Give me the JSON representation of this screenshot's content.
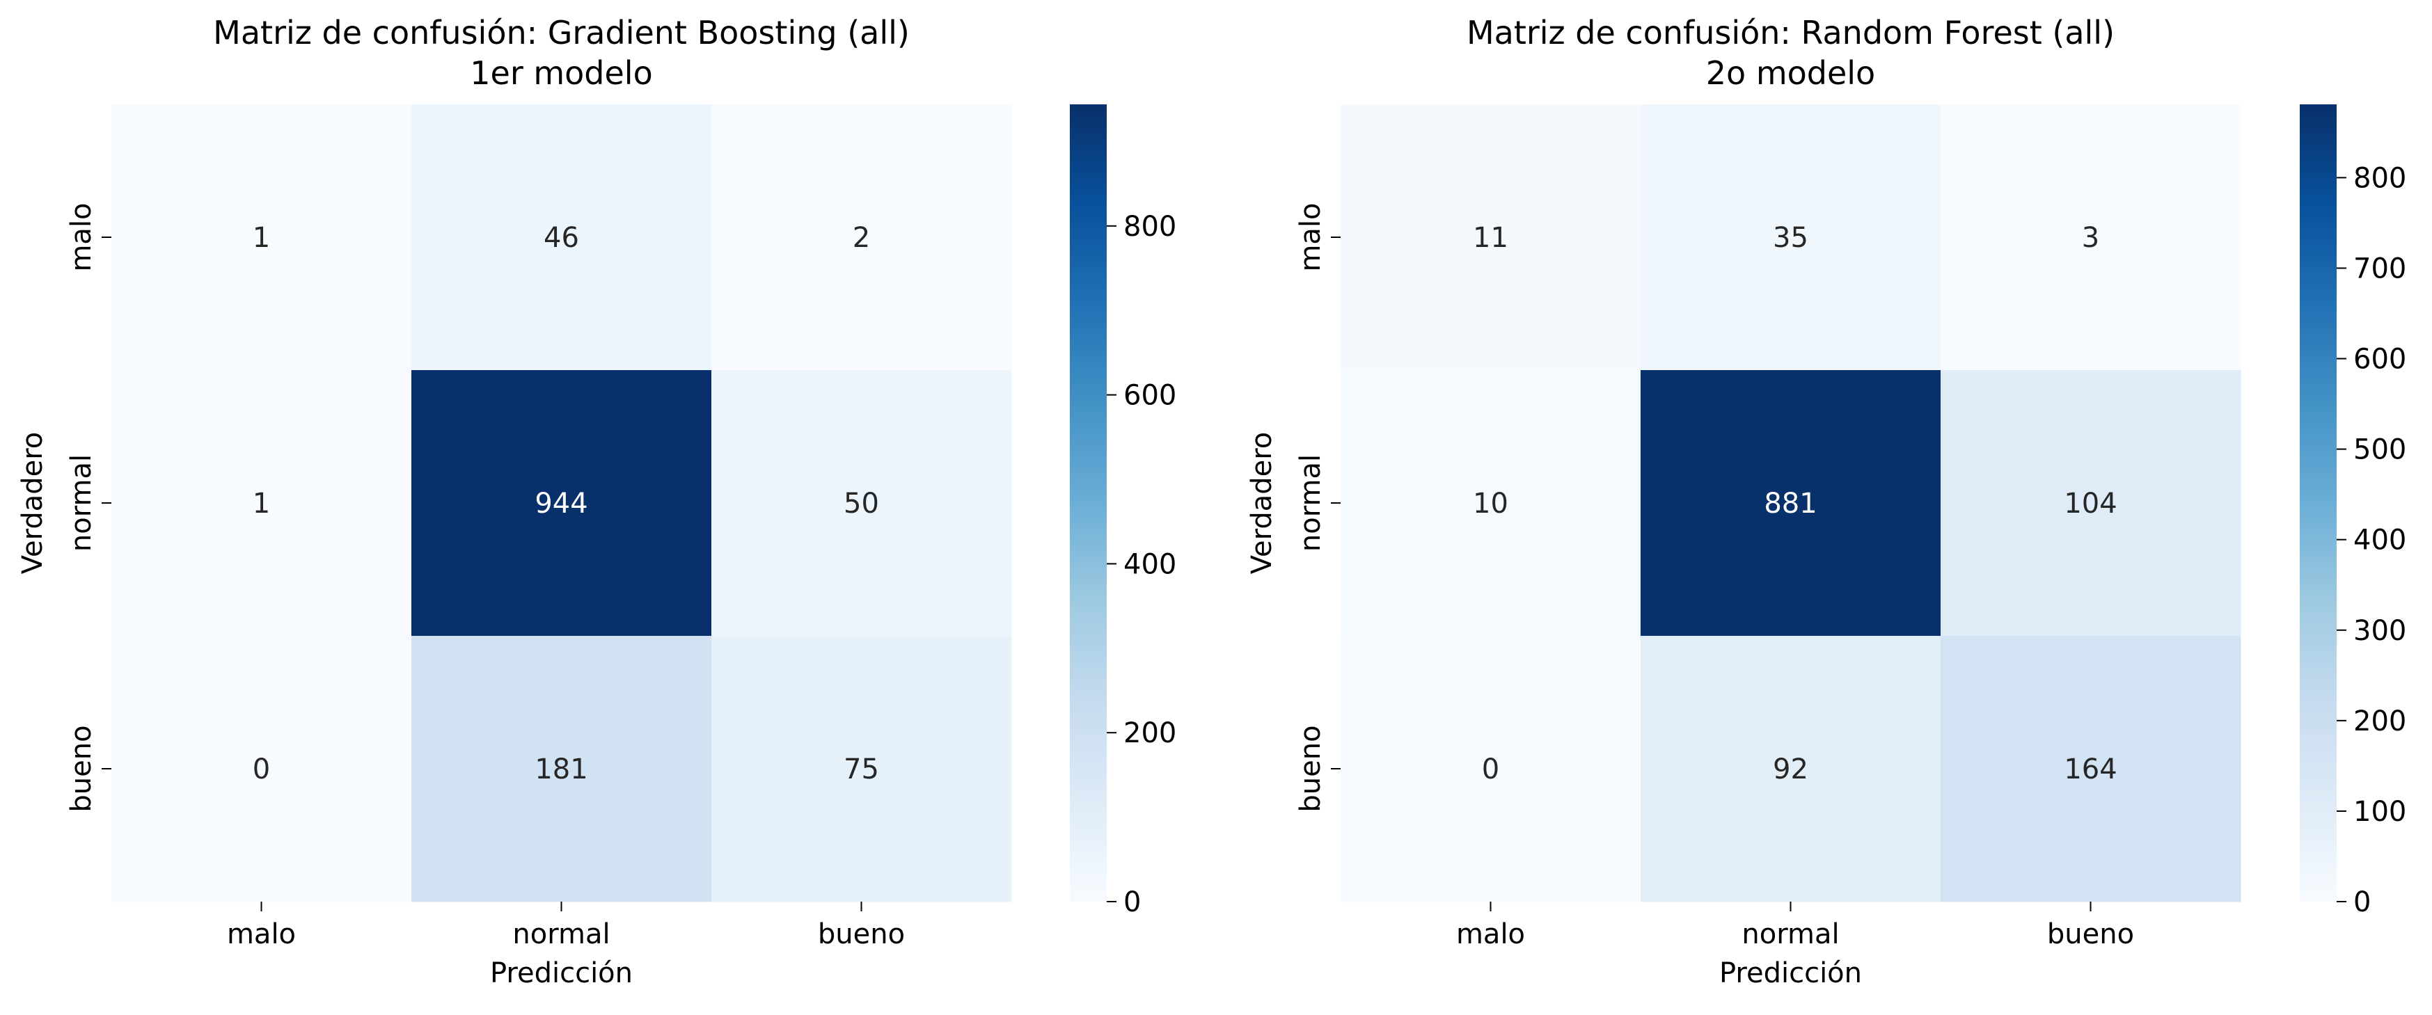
{
  "chart_data": [
    {
      "type": "heatmap",
      "title": "Matriz de confusión: Gradient Boosting (all)",
      "subtitle": "1er modelo",
      "xlabel": "Predicción",
      "ylabel": "Verdadero",
      "x_categories": [
        "malo",
        "normal",
        "bueno"
      ],
      "y_categories": [
        "malo",
        "normal",
        "bueno"
      ],
      "matrix": [
        [
          1,
          46,
          2
        ],
        [
          1,
          944,
          50
        ],
        [
          0,
          181,
          75
        ]
      ],
      "colorbar": {
        "min": 0,
        "max": 944,
        "ticks": [
          0,
          200,
          400,
          600,
          800
        ]
      },
      "colormap": "Blues"
    },
    {
      "type": "heatmap",
      "title": "Matriz de confusión: Random Forest (all)",
      "subtitle": "2o modelo",
      "xlabel": "Predicción",
      "ylabel": "Verdadero",
      "x_categories": [
        "malo",
        "normal",
        "bueno"
      ],
      "y_categories": [
        "malo",
        "normal",
        "bueno"
      ],
      "matrix": [
        [
          11,
          35,
          3
        ],
        [
          10,
          881,
          104
        ],
        [
          0,
          92,
          164
        ]
      ],
      "colorbar": {
        "min": 0,
        "max": 881,
        "ticks": [
          0,
          100,
          200,
          300,
          400,
          500,
          600,
          700,
          800
        ]
      },
      "colormap": "Blues"
    }
  ]
}
